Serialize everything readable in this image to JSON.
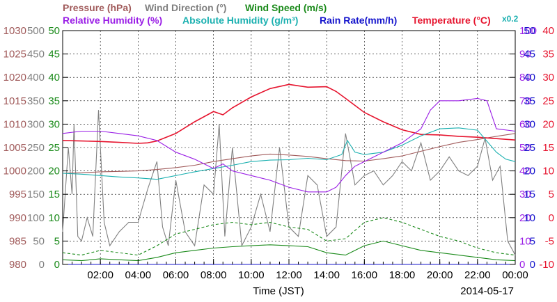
{
  "chart_data": {
    "type": "line",
    "date": "2014-05-17",
    "xlabel": "Time (JST)",
    "x_ticks": [
      "02:00",
      "04:00",
      "06:00",
      "08:00",
      "10:00",
      "12:00",
      "14:00",
      "16:00",
      "18:00",
      "20:00",
      "22:00",
      "00:00"
    ],
    "x_range_hours": [
      0,
      24
    ],
    "grid": true,
    "legend": [
      {
        "key": "pressure",
        "label": "Pressure (hPa)",
        "color": "#a05a5a"
      },
      {
        "key": "wind_dir",
        "label": "Wind Direction (°)",
        "color": "#808080"
      },
      {
        "key": "wind_speed",
        "label": "Wind Speed (m/s)",
        "color": "#1a8a1a"
      },
      {
        "key": "rel_hum",
        "label": "Relative Humidity (%)",
        "color": "#9a1ee6"
      },
      {
        "key": "abs_hum",
        "label": "Absolute Humidity (g/m³)",
        "color": "#1ab0b0",
        "scale_note": "x0.2"
      },
      {
        "key": "rain",
        "label": "Rain Rate(mm/h)",
        "color": "#1414cc"
      },
      {
        "key": "temp",
        "label": "Temperature (°C)",
        "color": "#e6142e"
      }
    ],
    "axes": {
      "pressure": {
        "ticks": [
          "1030",
          "1025",
          "1020",
          "1015",
          "1010",
          "1005",
          "1000",
          "995",
          "990",
          "985",
          "980"
        ],
        "range": [
          980,
          1030
        ],
        "color": "#a05a5a"
      },
      "wind_dir": {
        "ticks": [
          "500",
          "450",
          "400",
          "350",
          "300",
          "250",
          "200",
          "150",
          "100",
          "50",
          "0"
        ],
        "range": [
          0,
          500
        ],
        "color": "#808080"
      },
      "wind_speed": {
        "ticks": [
          "50",
          "45",
          "40",
          "35",
          "30",
          "25",
          "20",
          "15",
          "10",
          "5",
          "0"
        ],
        "range": [
          0,
          50
        ],
        "color": "#1a8a1a"
      },
      "rel_hum": {
        "ticks": [
          "100",
          "90",
          "80",
          "70",
          "60",
          "50",
          "40",
          "30",
          "20",
          "10",
          "0"
        ],
        "range": [
          0,
          100
        ],
        "color": "#9a1ee6"
      },
      "rain": {
        "ticks": [
          "50",
          "45",
          "40",
          "35",
          "30",
          "25",
          "20",
          "15",
          "10",
          "5",
          "0"
        ],
        "range": [
          0,
          50
        ],
        "color": "#1414cc"
      },
      "temp": {
        "ticks": [
          "40",
          "35",
          "30",
          "25",
          "20",
          "15",
          "10",
          "5",
          "0",
          "-5",
          "-10"
        ],
        "range": [
          -10,
          40
        ],
        "color": "#e6142e"
      }
    },
    "series": [
      {
        "name": "Temperature (°C)",
        "axis": "temp",
        "color": "#e6142e",
        "x": [
          0,
          1,
          2,
          3,
          4,
          4.5,
          5,
          6,
          7,
          8,
          8.5,
          9,
          10,
          11,
          12,
          12.5,
          13,
          14,
          14.5,
          15,
          16,
          17,
          18,
          19,
          20,
          21,
          22,
          23,
          24
        ],
        "y": [
          16.5,
          16.4,
          16.3,
          16.1,
          15.9,
          16.0,
          16.4,
          18.0,
          20.5,
          22.7,
          22.0,
          23.5,
          25.8,
          27.6,
          28.5,
          28.2,
          27.9,
          28.0,
          27.0,
          25.5,
          22.5,
          20.5,
          18.8,
          17.8,
          17.7,
          17.4,
          17.2,
          16.9,
          16.6
        ]
      },
      {
        "name": "Pressure (hPa)",
        "axis": "pressure",
        "color": "#a05a5a",
        "x": [
          0,
          1,
          2,
          3,
          4,
          5,
          6,
          7,
          8,
          9,
          10,
          11,
          12,
          13,
          14,
          15,
          16,
          17,
          18,
          19,
          20,
          21,
          22,
          23,
          24
        ],
        "y": [
          999.5,
          999.6,
          999.8,
          999.9,
          1000.0,
          1000.3,
          1000.7,
          1001.2,
          1002.0,
          1002.6,
          1003.2,
          1003.6,
          1003.4,
          1003.1,
          1002.6,
          1002.2,
          1002.1,
          1002.6,
          1003.2,
          1004.2,
          1005.2,
          1006.1,
          1006.7,
          1007.4,
          1008.0
        ]
      },
      {
        "name": "Relative Humidity (%)",
        "axis": "rel_hum",
        "color": "#9a1ee6",
        "x": [
          0,
          1,
          2,
          3,
          4,
          5,
          6,
          7,
          8,
          8.5,
          9,
          10,
          11,
          12,
          13,
          14,
          14.5,
          15,
          15.5,
          16,
          17,
          17.5,
          18,
          19,
          19.5,
          20,
          21,
          22,
          22.5,
          23,
          24
        ],
        "y": [
          56,
          57,
          57,
          56,
          55,
          53,
          48,
          45,
          41,
          43,
          40,
          38,
          36,
          33,
          31,
          31,
          33,
          38,
          42,
          44,
          48,
          50,
          52,
          58,
          66,
          70,
          70,
          71,
          70,
          58,
          57
        ]
      },
      {
        "name": "Absolute Humidity (g/m³)",
        "axis": "wind_speed",
        "color": "#1ab0b0",
        "x": [
          0,
          1,
          2,
          3,
          4,
          5,
          6,
          7,
          8,
          9,
          10,
          11,
          12,
          13,
          14,
          14.8,
          15.1,
          15.5,
          16,
          17,
          18,
          19,
          20,
          21,
          22,
          23,
          23.5,
          24
        ],
        "y": [
          19.5,
          19.3,
          19.0,
          18.7,
          18.5,
          18.2,
          19.0,
          19.8,
          20.5,
          21.2,
          22.0,
          22.3,
          22.4,
          22.7,
          22.4,
          23.5,
          26.5,
          24.0,
          23.5,
          24.0,
          25.5,
          27.5,
          29.0,
          29.2,
          28.7,
          24.0,
          22.5,
          22.0
        ]
      },
      {
        "name": "Wind Direction (°)",
        "axis": "wind_dir",
        "color": "#808080",
        "x": [
          0,
          0.3,
          0.5,
          0.6,
          0.8,
          1.0,
          1.3,
          1.6,
          1.9,
          2.2,
          2.5,
          3.0,
          3.5,
          4.0,
          4.5,
          5.0,
          5.3,
          5.6,
          6.0,
          6.5,
          7.0,
          7.5,
          8.0,
          8.3,
          8.6,
          9.0,
          9.5,
          10.0,
          10.5,
          11.0,
          11.5,
          12.0,
          12.5,
          13.0,
          13.5,
          14.0,
          14.5,
          15.0,
          15.5,
          16.0,
          16.5,
          17.0,
          17.5,
          18.0,
          18.5,
          19.0,
          19.5,
          20.0,
          20.5,
          21.0,
          21.5,
          22.0,
          22.4,
          22.8,
          23.2,
          23.6,
          24.0
        ],
        "y": [
          70,
          250,
          150,
          300,
          60,
          50,
          100,
          60,
          330,
          90,
          40,
          70,
          90,
          90,
          160,
          220,
          80,
          40,
          180,
          70,
          40,
          170,
          150,
          300,
          60,
          250,
          40,
          80,
          150,
          70,
          250,
          80,
          60,
          190,
          170,
          60,
          80,
          280,
          170,
          190,
          200,
          170,
          190,
          220,
          200,
          260,
          180,
          200,
          230,
          200,
          190,
          210,
          270,
          180,
          210,
          50,
          20
        ]
      },
      {
        "name": "Wind Speed (m/s)",
        "axis": "wind_speed",
        "color": "#1a8a1a",
        "x": [
          0,
          1,
          2,
          3,
          4,
          5,
          6,
          7,
          8,
          9,
          10,
          11,
          12,
          13,
          14,
          15,
          16,
          17,
          18,
          19,
          20,
          21,
          22,
          23,
          24
        ],
        "y": [
          1.0,
          0.8,
          1.2,
          1.0,
          0.8,
          1.5,
          2.5,
          3.0,
          3.5,
          3.8,
          4.0,
          4.2,
          4.0,
          3.8,
          2.5,
          2.0,
          4.0,
          5.0,
          4.0,
          3.0,
          2.5,
          2.0,
          1.5,
          1.0,
          0.8
        ]
      },
      {
        "name": "Wind Speed gust (m/s)",
        "axis": "wind_speed",
        "color": "#1a8a1a",
        "dashed": true,
        "x": [
          0,
          1,
          2,
          3,
          4,
          5,
          6,
          7,
          8,
          9,
          10,
          11,
          12,
          13,
          14,
          15,
          16,
          17,
          18,
          19,
          20,
          21,
          22,
          23,
          24
        ],
        "y": [
          2.5,
          2.0,
          3.0,
          2.5,
          2.0,
          4.0,
          6.5,
          7.5,
          8.5,
          9.0,
          8.5,
          9.0,
          8.0,
          7.5,
          5.0,
          5.5,
          9.0,
          10.0,
          9.0,
          7.5,
          6.0,
          5.0,
          3.5,
          2.5,
          2.0
        ]
      },
      {
        "name": "Rain Rate(mm/h)",
        "axis": "rain",
        "color": "#1414cc",
        "x": [
          0,
          24
        ],
        "y": [
          0,
          0
        ]
      }
    ]
  }
}
